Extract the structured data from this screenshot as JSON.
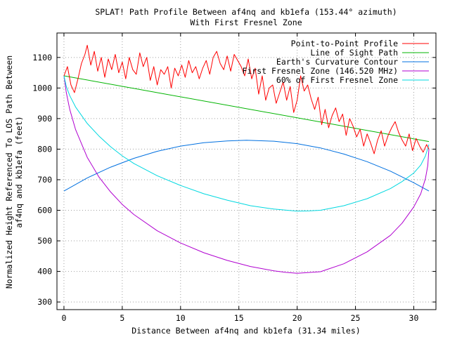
{
  "chart_data": {
    "type": "line",
    "title": "SPLAT! Path Profile Between af4nq and kb1efa (153.44° azimuth)",
    "subtitle": "With First Fresnel Zone",
    "xlabel": "Distance Between af4nq and kb1efa (31.34 miles)",
    "ylabel_line1": "Normalized Height Referenced To LOS Path Between",
    "ylabel_line2": "af4nq and kb1efa (feet)",
    "xlim": [
      -0.6,
      31.9
    ],
    "ylim": [
      275,
      1180
    ],
    "x_ticks": [
      "0",
      "5",
      "10",
      "15",
      "20",
      "25",
      "30"
    ],
    "y_ticks": [
      "300",
      "400",
      "500",
      "600",
      "700",
      "800",
      "900",
      "1000",
      "1100"
    ],
    "grid": true,
    "legend_position": "top-right",
    "series": [
      {
        "name": "Point-to-Point Profile",
        "color": "#ff0000",
        "x": [
          0,
          0.3,
          0.6,
          0.9,
          1.2,
          1.5,
          1.8,
          2.0,
          2.3,
          2.6,
          2.9,
          3.2,
          3.5,
          3.8,
          4.1,
          4.4,
          4.7,
          5.0,
          5.3,
          5.6,
          5.9,
          6.2,
          6.5,
          6.8,
          7.1,
          7.4,
          7.7,
          8.0,
          8.3,
          8.6,
          8.9,
          9.2,
          9.5,
          9.8,
          10.1,
          10.4,
          10.7,
          11.0,
          11.3,
          11.6,
          11.9,
          12.2,
          12.5,
          12.8,
          13.1,
          13.4,
          13.7,
          14.0,
          14.3,
          14.6,
          14.9,
          15.2,
          15.5,
          15.8,
          16.1,
          16.4,
          16.7,
          17.0,
          17.3,
          17.6,
          17.9,
          18.2,
          18.5,
          18.8,
          19.1,
          19.4,
          19.7,
          20.0,
          20.3,
          20.6,
          20.9,
          21.2,
          21.5,
          21.8,
          22.1,
          22.4,
          22.7,
          23.0,
          23.3,
          23.6,
          23.9,
          24.2,
          24.5,
          24.8,
          25.1,
          25.4,
          25.7,
          26.0,
          26.3,
          26.6,
          26.9,
          27.2,
          27.5,
          27.8,
          28.1,
          28.4,
          28.7,
          29.0,
          29.3,
          29.6,
          29.9,
          30.2,
          30.5,
          30.8,
          31.1,
          31.3
        ],
        "values": [
          1040,
          1070,
          1010,
          985,
          1030,
          1080,
          1110,
          1140,
          1075,
          1120,
          1055,
          1100,
          1035,
          1095,
          1060,
          1110,
          1050,
          1085,
          1030,
          1100,
          1060,
          1045,
          1115,
          1070,
          1100,
          1025,
          1070,
          1010,
          1060,
          1045,
          1070,
          1000,
          1065,
          1040,
          1075,
          1035,
          1090,
          1050,
          1070,
          1030,
          1065,
          1090,
          1045,
          1100,
          1120,
          1080,
          1060,
          1105,
          1055,
          1110,
          1090,
          1070,
          1040,
          1095,
          1030,
          1065,
          980,
          1040,
          960,
          1000,
          1010,
          950,
          985,
          1020,
          960,
          1005,
          920,
          960,
          1040,
          990,
          1010,
          965,
          930,
          970,
          880,
          930,
          870,
          910,
          935,
          890,
          915,
          845,
          900,
          875,
          840,
          865,
          810,
          850,
          820,
          785,
          830,
          860,
          810,
          845,
          870,
          890,
          855,
          830,
          810,
          850,
          795,
          835,
          810,
          790,
          815,
          800
        ]
      },
      {
        "name": "Line of Sight Path",
        "color": "#00b400",
        "x": [
          0,
          31.3
        ],
        "values": [
          1040,
          825
        ]
      },
      {
        "name": "Earth's Curvature Contour",
        "color": "#0070e0",
        "x": [
          0,
          2,
          4,
          6,
          8,
          10,
          12,
          14,
          15.65,
          18,
          20,
          22,
          24,
          26,
          28,
          30,
          31.3
        ],
        "values": [
          663,
          706,
          741,
          770,
          793,
          810,
          821,
          827,
          829,
          826,
          818,
          804,
          784,
          759,
          728,
          690,
          663
        ]
      },
      {
        "name": "First Fresnel Zone (146.520 MHz)",
        "color": "#b000d0",
        "x": [
          0,
          0.2,
          0.5,
          1,
          2,
          3,
          4,
          5,
          6,
          8,
          10,
          12,
          14,
          16,
          18,
          19,
          20,
          22,
          24,
          26,
          28,
          29,
          30,
          30.6,
          31,
          31.2,
          31.3
        ],
        "values": [
          1040,
          985,
          930,
          864,
          773,
          709,
          660,
          619,
          586,
          533,
          493,
          461,
          436,
          416,
          402,
          397,
          394,
          399,
          425,
          464,
          518,
          558,
          611,
          654,
          704,
          746,
          800
        ]
      },
      {
        "name": "60% of First Fresnel Zone",
        "color": "#00d8e0",
        "x": [
          0,
          0.2,
          0.5,
          1,
          2,
          3,
          4,
          5,
          6,
          8,
          10,
          12,
          14,
          16,
          18,
          20,
          21,
          22,
          24,
          26,
          28,
          29,
          30,
          30.6,
          31,
          31.3
        ],
        "values": [
          1040,
          1005,
          975,
          938,
          884,
          843,
          808,
          778,
          753,
          713,
          681,
          654,
          633,
          615,
          604,
          597,
          598,
          600,
          615,
          638,
          671,
          694,
          722,
          748,
          778,
          815
        ]
      }
    ]
  }
}
